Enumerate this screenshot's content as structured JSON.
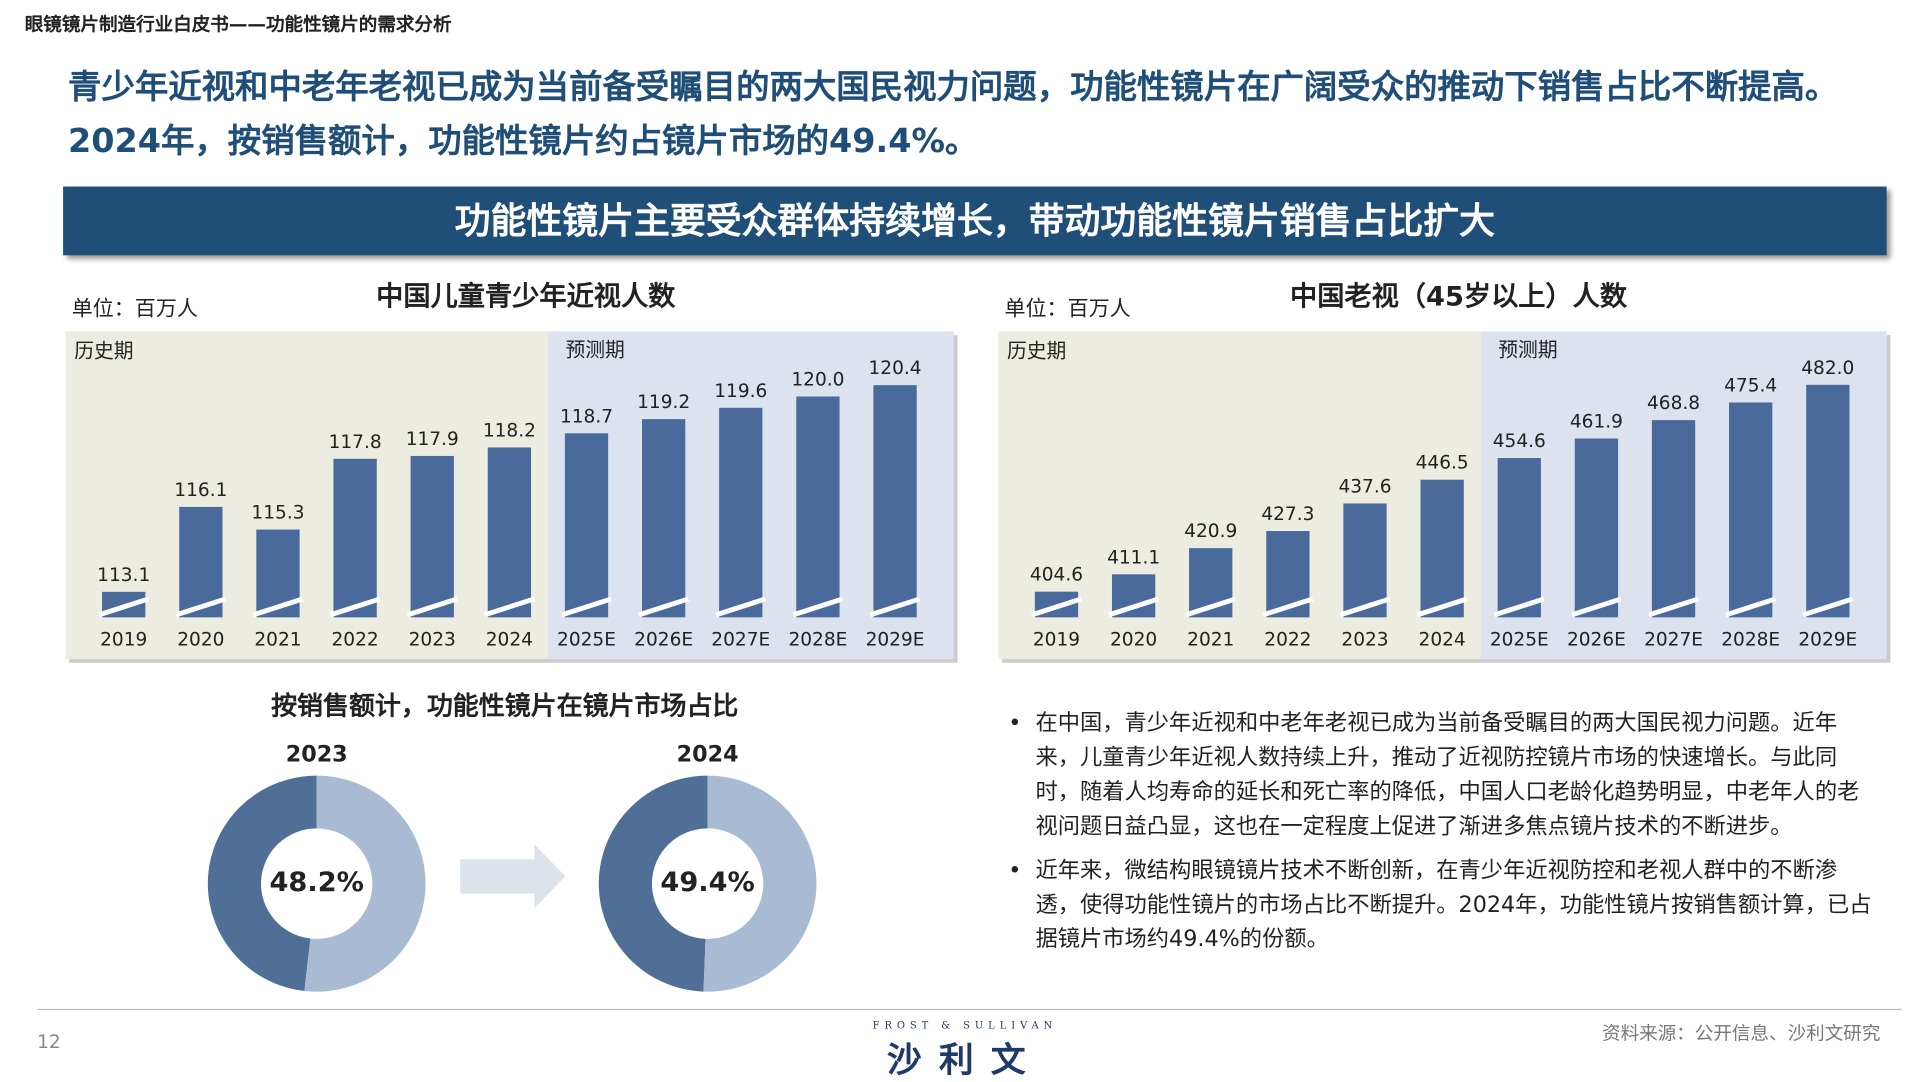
{
  "header": {
    "section": "眼镜镜片制造行业白皮书——功能性镜片的需求分析",
    "headline": "青少年近视和中老年老视已成为当前备受瞩目的两大国民视力问题，功能性镜片在广阔受众的推动下销售占比不断提高。2024年，按销售额计，功能性镜片约占镜片市场的49.4%。",
    "banner": "功能性镜片主要受众群体持续增长，带动功能性镜片销售占比扩大"
  },
  "chart_data": [
    {
      "type": "bar",
      "title": "中国儿童青少年近视人数",
      "unit": "单位：百万人",
      "period_labels": [
        "历史期",
        "预测期"
      ],
      "categories": [
        "2019",
        "2020",
        "2021",
        "2022",
        "2023",
        "2024",
        "2025E",
        "2026E",
        "2027E",
        "2028E",
        "2029E"
      ],
      "values": [
        113.1,
        116.1,
        115.3,
        117.8,
        117.9,
        118.2,
        118.7,
        119.2,
        119.6,
        120.0,
        120.4
      ],
      "value_labels": [
        "113.1",
        "116.1",
        "115.3",
        "117.8",
        "117.9",
        "118.2",
        "118.7",
        "119.2",
        "119.6",
        "120.0",
        "120.4"
      ],
      "color": "#4a6a9c",
      "ylim": [
        112.2,
        122.3
      ]
    },
    {
      "type": "bar",
      "title": "中国老视（45岁以上）人数",
      "unit": "单位：百万人",
      "period_labels": [
        "历史期",
        "预测期"
      ],
      "categories": [
        "2019",
        "2020",
        "2021",
        "2022",
        "2023",
        "2024",
        "2025E",
        "2026E",
        "2027E",
        "2028E",
        "2029E"
      ],
      "values": [
        404.6,
        411.1,
        420.9,
        427.3,
        437.6,
        446.5,
        454.6,
        461.9,
        468.8,
        475.4,
        482.0
      ],
      "value_labels": [
        "404.6",
        "411.1",
        "420.9",
        "427.3",
        "437.6",
        "446.5",
        "454.6",
        "461.9",
        "468.8",
        "475.4",
        "482.0"
      ],
      "color": "#4a6a9c",
      "ylim": [
        395,
        502
      ]
    },
    {
      "type": "donut",
      "title": "2023",
      "values": [
        48.2,
        51.8
      ],
      "colors": [
        "#4f6f96",
        "#a9bbd3"
      ],
      "center_label": "48.2%"
    },
    {
      "type": "donut",
      "title": "2024",
      "values": [
        49.4,
        50.6
      ],
      "colors": [
        "#4f6f96",
        "#a9bbd3"
      ],
      "center_label": "49.4%"
    }
  ],
  "donut_section_title": "按销售额计，功能性镜片在镜片市场占比",
  "bullets": [
    "在中国，青少年近视和中老年老视已成为当前备受瞩目的两大国民视力问题。近年来，儿童青少年近视人数持续上升，推动了近视防控镜片市场的快速增长。与此同时，随着人均寿命的延长和死亡率的降低，中国人口老龄化趋势明显，中老年人的老视问题日益凸显，这也在一定程度上促进了渐进多焦点镜片技术的不断进步。",
    "近年来，微结构眼镜镜片技术不断创新，在青少年近视防控和老视人群中的不断渗透，使得功能性镜片的市场占比不断提升。2024年，功能性镜片按销售额计算，已占据镜片市场约49.4%的份额。"
  ],
  "footer": {
    "page": "12",
    "brand_en": "FROST & SULLIVAN",
    "brand_cn": "沙利文",
    "source": "资料来源：公开信息、沙利文研究"
  }
}
